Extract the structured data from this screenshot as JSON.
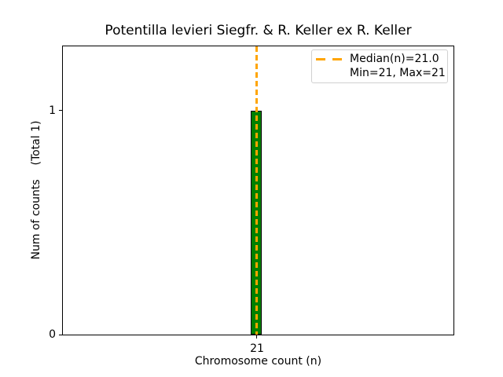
{
  "chart_data": {
    "type": "bar",
    "title": "Potentilla levieri Siegfr. & R. Keller ex R. Keller",
    "xlabel": "Chromosome count (n)",
    "ylabel": "Num of counts    (Total 1)",
    "categories": [
      21
    ],
    "values": [
      1
    ],
    "total_counts": 1,
    "median": 21.0,
    "min": 21,
    "max": 21,
    "xlim_note": "single bin centered on 21",
    "ylim": [
      0,
      1.3
    ],
    "yticks": [
      "0",
      "1"
    ],
    "xticks": [
      "21"
    ],
    "grid": false,
    "legend": {
      "position": "upper right",
      "entries": [
        {
          "label": "Median(n)=21.0",
          "symbol": "dashed-line",
          "color": "#FFA500"
        },
        {
          "label": "Min=21, Max=21",
          "symbol": "none"
        }
      ]
    },
    "colors": {
      "bar_fill": "#008000",
      "bar_edge": "#000000",
      "median_line": "#FFA500",
      "background": "#ffffff",
      "text": "#000000",
      "legend_border": "#d0d0d0"
    }
  }
}
